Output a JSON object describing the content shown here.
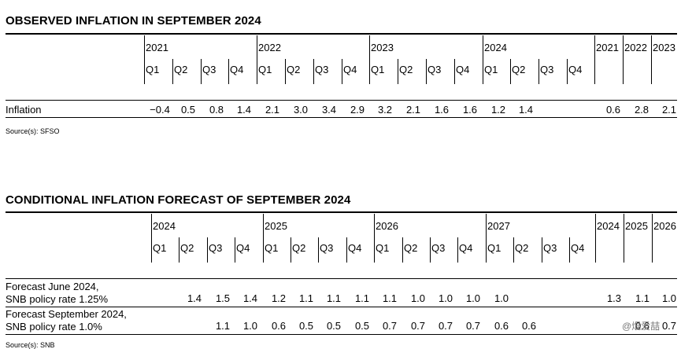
{
  "table1": {
    "title": "OBSERVED INFLATION IN SEPTEMBER 2024",
    "years": [
      "2021",
      "2022",
      "2023",
      "2024"
    ],
    "quarters": [
      "Q1",
      "Q2",
      "Q3",
      "Q4"
    ],
    "annual_years": [
      "2021",
      "2022",
      "2023"
    ],
    "rows": [
      {
        "label": "Inflation",
        "quarterly": [
          "−0.4",
          "0.5",
          "0.8",
          "1.4",
          "2.1",
          "3.0",
          "3.4",
          "2.9",
          "3.2",
          "2.1",
          "1.6",
          "1.6",
          "1.2",
          "1.4",
          "",
          ""
        ],
        "annual": [
          "0.6",
          "2.8",
          "2.1"
        ]
      }
    ],
    "source": "Source(s): SFSO"
  },
  "table2": {
    "title": "CONDITIONAL INFLATION FORECAST OF SEPTEMBER 2024",
    "years": [
      "2024",
      "2025",
      "2026",
      "2027"
    ],
    "quarters": [
      "Q1",
      "Q2",
      "Q3",
      "Q4"
    ],
    "annual_years": [
      "2024",
      "2025",
      "2026"
    ],
    "rows": [
      {
        "label_line1": "Forecast June 2024,",
        "label_line2": "SNB policy rate 1.25%",
        "quarterly": [
          "",
          "1.4",
          "1.5",
          "1.4",
          "1.2",
          "1.1",
          "1.1",
          "1.1",
          "1.1",
          "1.0",
          "1.0",
          "1.0",
          "1.0",
          "",
          "",
          ""
        ],
        "annual": [
          "1.3",
          "1.1",
          "1.0"
        ]
      },
      {
        "label_line1": "Forecast September 2024,",
        "label_line2": "SNB policy rate 1.0%",
        "quarterly": [
          "",
          "",
          "1.1",
          "1.0",
          "0.6",
          "0.5",
          "0.5",
          "0.5",
          "0.7",
          "0.7",
          "0.7",
          "0.7",
          "0.6",
          "0.6",
          "",
          ""
        ],
        "annual": [
          "",
          "0.6",
          "0.7"
        ]
      }
    ],
    "source": "Source(s): SNB"
  },
  "watermark": "@焜爱喆"
}
